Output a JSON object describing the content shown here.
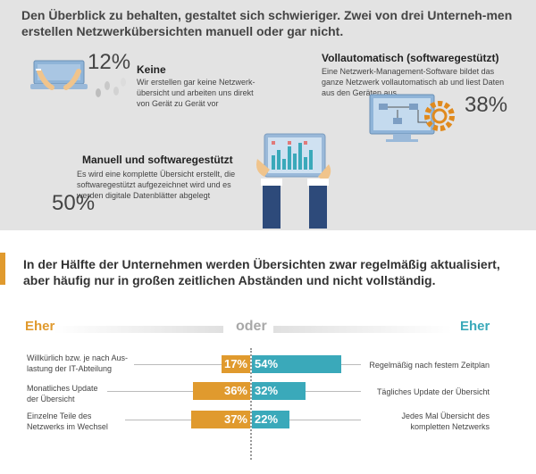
{
  "top": {
    "title": "Den Überblick zu behalten, gestaltet sich schwieriger. Zwei von drei Unterneh-men erstellen Netzwerkübersichten manuell oder gar nicht.",
    "keine": {
      "percent": "12%",
      "title": "Keine",
      "text_1": "Wir erstellen gar keine Netzwerk-",
      "text_2": "übersicht und arbeiten uns direkt",
      "text_3": "von Gerät zu Gerät vor"
    },
    "voll": {
      "percent": "38%",
      "title": "Vollautomatisch (softwaregestützt)",
      "text_1": "Eine Netzwerk-Management-Software bildet das",
      "text_2": "ganze Netzwerk vollautomatisch ab und liest Daten",
      "text_3": "aus den Geräten aus"
    },
    "manuell": {
      "percent": "50%",
      "title": "Manuell und softwaregestützt",
      "text_1": "Es wird eine komplette Übersicht erstellt, die",
      "text_2": "softwaregestützt aufgezeichnet wird und es",
      "text_3": "werden digitale Datenblätter abgelegt"
    }
  },
  "bottom": {
    "title": "In der Hälfte der Unternehmen werden Übersichten zwar regelmäßig aktualisiert, aber häufig nur in großen zeitlichen Abständen und nicht vollständig.",
    "eher_left": "Eher",
    "oder": "oder",
    "eher_right": "Eher",
    "rows": [
      {
        "left_1": "Willkürlich bzw. je nach Aus-",
        "left_2": "lastung der IT-Abteilung",
        "left_value": "17%",
        "right_value": "54%",
        "right_1": "Regelmäßig nach festem Zeitplan",
        "right_2": ""
      },
      {
        "left_1": "Monatliches Update",
        "left_2": "der Übersicht",
        "left_value": "36%",
        "right_value": "32%",
        "right_1": "Tägliches Update der Übersicht",
        "right_2": ""
      },
      {
        "left_1": "Einzelne Teile des",
        "left_2": "Netzwerks im Wechsel",
        "left_value": "37%",
        "right_value": "22%",
        "right_1": "Jedes Mal Übersicht des",
        "right_2": "kompletten Netzwerks"
      }
    ]
  },
  "colors": {
    "orange": "#e09a2e",
    "teal": "#3aa9ba",
    "panel_grey": "#e3e3e3",
    "navy": "#2d4a7a"
  },
  "icons": [
    "laptop-keyboard-icon",
    "tablet-chart-icon",
    "computer-gear-icon"
  ]
}
